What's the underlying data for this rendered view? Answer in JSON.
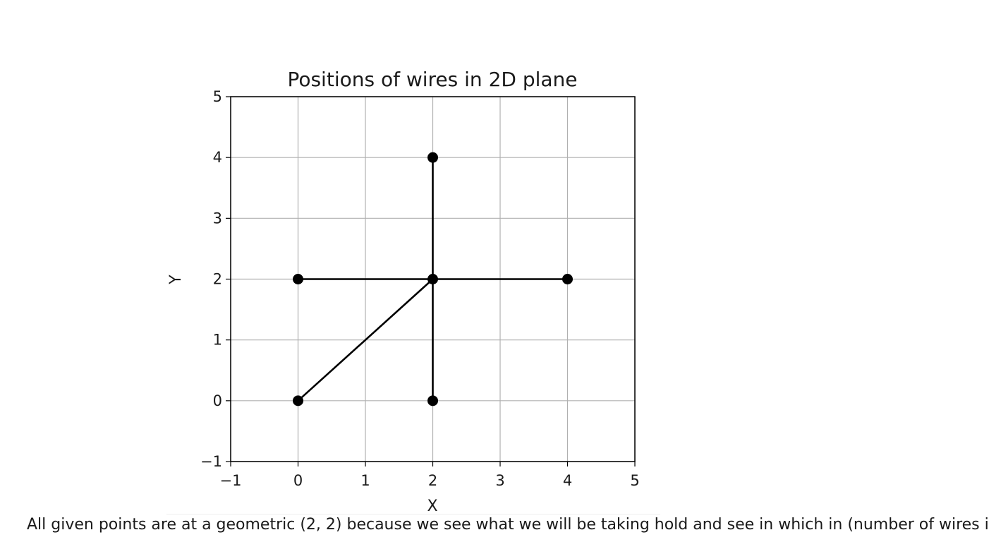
{
  "chart_data": {
    "type": "line",
    "title": "Positions of wires in 2D plane",
    "xlabel": "X",
    "ylabel": "Y",
    "xlim": [
      -1,
      5
    ],
    "ylim": [
      -1,
      5
    ],
    "xticks": [
      -1,
      0,
      1,
      2,
      3,
      4,
      5
    ],
    "yticks": [
      -1,
      0,
      1,
      2,
      3,
      4,
      5
    ],
    "grid": true,
    "color": "#000000",
    "series": [
      {
        "points": [
          [
            0,
            0
          ],
          [
            2,
            2
          ]
        ]
      },
      {
        "points": [
          [
            2,
            0
          ],
          [
            2,
            4
          ]
        ]
      },
      {
        "points": [
          [
            0,
            2
          ],
          [
            4,
            2
          ]
        ]
      }
    ],
    "markers": [
      [
        0,
        0
      ],
      [
        2,
        2
      ],
      [
        2,
        0
      ],
      [
        2,
        4
      ],
      [
        0,
        2
      ],
      [
        4,
        2
      ]
    ]
  },
  "caption": "All given points are at a geometric (2, 2) because we see what we will be taking hold and see in which in (number of wires i"
}
